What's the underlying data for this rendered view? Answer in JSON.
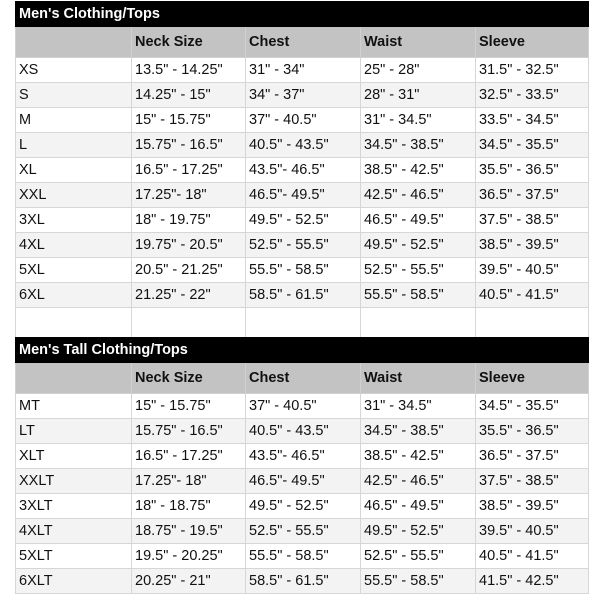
{
  "columns": [
    "",
    "Neck Size",
    "Chest",
    "Waist",
    "Sleeve"
  ],
  "tables": [
    {
      "title": "Men's Clothing/Tops",
      "rows": [
        [
          "XS",
          "13.5\" - 14.25\"",
          "31\" - 34\"",
          "25\" - 28\"",
          "31.5\" - 32.5\""
        ],
        [
          "S",
          "14.25\" - 15\"",
          "34\" - 37\"",
          "28\" - 31\"",
          "32.5\" - 33.5\""
        ],
        [
          "M",
          "15\" - 15.75\"",
          "37\" - 40.5\"",
          "31\" - 34.5\"",
          "33.5\" - 34.5\""
        ],
        [
          "L",
          "15.75\" - 16.5\"",
          "40.5\" - 43.5\"",
          "34.5\" - 38.5\"",
          "34.5\" - 35.5\""
        ],
        [
          "XL",
          "16.5\" - 17.25\"",
          "43.5\"- 46.5\"",
          "38.5\" - 42.5\"",
          "35.5\" - 36.5\""
        ],
        [
          "XXL",
          "17.25\"- 18\"",
          "46.5\"- 49.5\"",
          "42.5\" - 46.5\"",
          "36.5\" - 37.5\""
        ],
        [
          "3XL",
          "18\" - 19.75\"",
          "49.5\" - 52.5\"",
          "46.5\" - 49.5\"",
          "37.5\" - 38.5\""
        ],
        [
          "4XL",
          "19.75\" - 20.5\"",
          "52.5\" - 55.5\"",
          "49.5\" - 52.5\"",
          "38.5\" - 39.5\""
        ],
        [
          "5XL",
          "20.5\" - 21.25\"",
          "55.5\" - 58.5\"",
          "52.5\" - 55.5\"",
          "39.5\" - 40.5\""
        ],
        [
          "6XL",
          "21.25\" - 22\"",
          "58.5\" - 61.5\"",
          "55.5\" - 58.5\"",
          "40.5\" - 41.5\""
        ]
      ]
    },
    {
      "title": "Men's Tall Clothing/Tops",
      "rows": [
        [
          "MT",
          "15\" - 15.75\"",
          "37\" - 40.5\"",
          "31\" - 34.5\"",
          "34.5\" - 35.5\""
        ],
        [
          "LT",
          "15.75\" - 16.5\"",
          "40.5\" - 43.5\"",
          "34.5\" - 38.5\"",
          "35.5\" - 36.5\""
        ],
        [
          "XLT",
          "16.5\" - 17.25\"",
          "43.5\"- 46.5\"",
          "38.5\" - 42.5\"",
          "36.5\" - 37.5\""
        ],
        [
          "XXLT",
          "17.25\"- 18\"",
          "46.5\"- 49.5\"",
          "42.5\" - 46.5\"",
          "37.5\" - 38.5\""
        ],
        [
          "3XLT",
          "18\" - 18.75\"",
          "49.5\" - 52.5\"",
          "46.5\" - 49.5\"",
          "38.5\" - 39.5\""
        ],
        [
          "4XLT",
          "18.75\" - 19.5\"",
          "52.5\" - 55.5\"",
          "49.5\" - 52.5\"",
          "39.5\" - 40.5\""
        ],
        [
          "5XLT",
          "19.5\" - 20.25\"",
          "55.5\" - 58.5\"",
          "52.5\" - 55.5\"",
          "40.5\" - 41.5\""
        ],
        [
          "6XLT",
          "20.25\" - 21\"",
          "58.5\" - 61.5\"",
          "55.5\" - 58.5\"",
          "41.5\" - 42.5\""
        ]
      ]
    }
  ]
}
